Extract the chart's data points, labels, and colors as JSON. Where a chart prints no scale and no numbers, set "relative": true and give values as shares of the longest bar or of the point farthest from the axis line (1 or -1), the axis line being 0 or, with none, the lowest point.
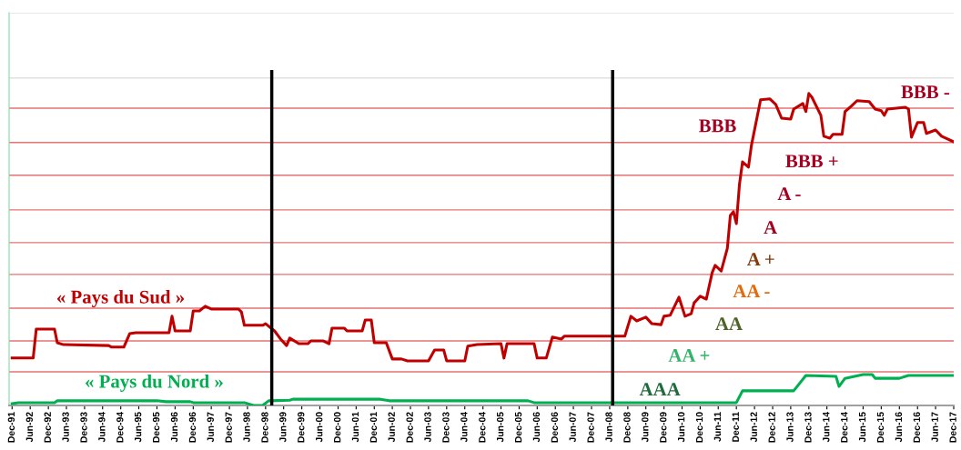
{
  "chart_data": {
    "type": "line",
    "relative": true,
    "grid": false,
    "legend": false,
    "marker": "none",
    "line_style": "solid",
    "xlim": [
      "1991-11",
      "2017-12"
    ],
    "xticks": [
      {
        "value": "1991-12",
        "label": "Dec-91"
      },
      {
        "value": "1992-06",
        "label": "Jun-92"
      },
      {
        "value": "1992-12",
        "label": "Dec-92"
      },
      {
        "value": "1993-06",
        "label": "Jun-93"
      },
      {
        "value": "1993-12",
        "label": "Dec-93"
      },
      {
        "value": "1994-06",
        "label": "Jun-94"
      },
      {
        "value": "1994-12",
        "label": "Dec-94"
      },
      {
        "value": "1995-06",
        "label": "Jun-95"
      },
      {
        "value": "1995-12",
        "label": "Dec-95"
      },
      {
        "value": "1996-06",
        "label": "Jun-96"
      },
      {
        "value": "1996-12",
        "label": "Dec-96"
      },
      {
        "value": "1997-06",
        "label": "Jun-97"
      },
      {
        "value": "1997-12",
        "label": "Dec-97"
      },
      {
        "value": "1998-06",
        "label": "Jun-98"
      },
      {
        "value": "1998-12",
        "label": "Dec-98"
      },
      {
        "value": "1999-06",
        "label": "Jun-99"
      },
      {
        "value": "1999-12",
        "label": "Dec-99"
      },
      {
        "value": "2000-06",
        "label": "Jun-00"
      },
      {
        "value": "2000-12",
        "label": "Dec-00"
      },
      {
        "value": "2001-06",
        "label": "Jun-01"
      },
      {
        "value": "2001-12",
        "label": "Dec-01"
      },
      {
        "value": "2002-06",
        "label": "Jun-02"
      },
      {
        "value": "2002-12",
        "label": "Dec-02"
      },
      {
        "value": "2003-06",
        "label": "Jun-03"
      },
      {
        "value": "2003-12",
        "label": "Dec-03"
      },
      {
        "value": "2004-06",
        "label": "Jun-04"
      },
      {
        "value": "2004-12",
        "label": "Dec-04"
      },
      {
        "value": "2005-06",
        "label": "Jun-05"
      },
      {
        "value": "2005-12",
        "label": "Dec-05"
      },
      {
        "value": "2006-06",
        "label": "Jun-06"
      },
      {
        "value": "2006-12",
        "label": "Dec-06"
      },
      {
        "value": "2007-06",
        "label": "Jun-07"
      },
      {
        "value": "2007-12",
        "label": "Dec-07"
      },
      {
        "value": "2008-06",
        "label": "Jun-08"
      },
      {
        "value": "2008-12",
        "label": "Dec-08"
      },
      {
        "value": "2009-06",
        "label": "Jun-09"
      },
      {
        "value": "2009-12",
        "label": "Dec-09"
      },
      {
        "value": "2010-06",
        "label": "Jun-10"
      },
      {
        "value": "2010-12",
        "label": "Dec-10"
      },
      {
        "value": "2011-06",
        "label": "Jun-11"
      },
      {
        "value": "2011-12",
        "label": "Dec-11"
      },
      {
        "value": "2012-06",
        "label": "Jun-12"
      },
      {
        "value": "2012-12",
        "label": "Dec-12"
      },
      {
        "value": "2013-06",
        "label": "Jun-13"
      },
      {
        "value": "2013-12",
        "label": "Dec-13"
      },
      {
        "value": "2014-06",
        "label": "Jun-14"
      },
      {
        "value": "2014-12",
        "label": "Dec-14"
      },
      {
        "value": "2015-06",
        "label": "Jun-15"
      },
      {
        "value": "2015-12",
        "label": "Dec-15"
      },
      {
        "value": "2016-06",
        "label": "Jun-16"
      },
      {
        "value": "2016-12",
        "label": "Dec-16"
      },
      {
        "value": "2017-06",
        "label": "Jun-17"
      },
      {
        "value": "2017-12",
        "label": "Dec-17"
      }
    ],
    "series": [
      {
        "name": "« Pays du Sud »",
        "color": "#c00000",
        "x": [
          "1991-12",
          "1992-07",
          "1992-08",
          "1993-02",
          "1993-03",
          "1993-05",
          "1994-08",
          "1994-09",
          "1995-01",
          "1995-03",
          "1995-05",
          "1996-04",
          "1996-05",
          "1996-06",
          "1996-11",
          "1996-12",
          "1997-02",
          "1997-04",
          "1997-06",
          "1998-03",
          "1998-04",
          "1998-05",
          "1998-11",
          "1998-12",
          "1999-03",
          "1999-05",
          "1999-07",
          "1999-08",
          "1999-11",
          "2000-02",
          "2000-03",
          "2000-07",
          "2000-09",
          "2000-10",
          "2001-02",
          "2001-03",
          "2001-08",
          "2001-09",
          "2001-11",
          "2001-12",
          "2002-04",
          "2002-06",
          "2002-09",
          "2002-11",
          "2003-06",
          "2003-08",
          "2003-11",
          "2003-12",
          "2004-06",
          "2004-07",
          "2004-10",
          "2005-06",
          "2005-07",
          "2005-08",
          "2006-05",
          "2006-06",
          "2006-09",
          "2006-11",
          "2007-02",
          "2007-03",
          "2008-11",
          "2009-01",
          "2009-03",
          "2009-06",
          "2009-08",
          "2009-11",
          "2009-12",
          "2010-02",
          "2010-05",
          "2010-07",
          "2010-09",
          "2010-10",
          "2010-12",
          "2011-02",
          "2011-04",
          "2011-05",
          "2011-07",
          "2011-09",
          "2011-10",
          "2011-11",
          "2011-12",
          "2012-01",
          "2012-02",
          "2012-04",
          "2012-05",
          "2012-08",
          "2012-11",
          "2013-01",
          "2013-03",
          "2013-06",
          "2013-07",
          "2013-10",
          "2013-11",
          "2013-12",
          "2014-01",
          "2014-04",
          "2014-05",
          "2014-07",
          "2014-08",
          "2014-11",
          "2014-12",
          "2015-02",
          "2015-04",
          "2015-08",
          "2015-10",
          "2015-12",
          "2016-01",
          "2016-02",
          "2016-08",
          "2016-09",
          "2016-10",
          "2016-12",
          "2017-02",
          "2017-03",
          "2017-06",
          "2017-08",
          "2017-12"
        ],
        "values": [
          0.152,
          0.152,
          0.245,
          0.245,
          0.201,
          0.195,
          0.192,
          0.187,
          0.187,
          0.23,
          0.233,
          0.233,
          0.286,
          0.239,
          0.239,
          0.303,
          0.303,
          0.318,
          0.309,
          0.309,
          0.3,
          0.257,
          0.257,
          0.262,
          0.239,
          0.213,
          0.192,
          0.216,
          0.198,
          0.198,
          0.207,
          0.207,
          0.198,
          0.248,
          0.248,
          0.239,
          0.239,
          0.274,
          0.274,
          0.201,
          0.201,
          0.149,
          0.149,
          0.143,
          0.143,
          0.178,
          0.178,
          0.143,
          0.143,
          0.19,
          0.195,
          0.198,
          0.152,
          0.198,
          0.198,
          0.152,
          0.152,
          0.219,
          0.213,
          0.222,
          0.222,
          0.286,
          0.271,
          0.283,
          0.262,
          0.259,
          0.286,
          0.289,
          0.347,
          0.286,
          0.294,
          0.329,
          0.35,
          0.341,
          0.426,
          0.449,
          0.431,
          0.504,
          0.609,
          0.621,
          0.583,
          0.708,
          0.781,
          0.764,
          0.834,
          0.98,
          0.983,
          0.965,
          0.921,
          0.918,
          0.95,
          0.968,
          0.942,
          1.0,
          0.988,
          0.93,
          0.863,
          0.857,
          0.869,
          0.869,
          0.942,
          0.959,
          0.977,
          0.974,
          0.95,
          0.945,
          0.93,
          0.95,
          0.956,
          0.95,
          0.86,
          0.907,
          0.907,
          0.872,
          0.883,
          0.863,
          0.845
        ]
      },
      {
        "name": "« Pays du Nord »",
        "color": "#00b050",
        "x": [
          "1991-12",
          "1992-02",
          "1993-02",
          "1993-03",
          "1995-12",
          "1996-03",
          "1996-11",
          "1996-12",
          "1998-05",
          "1998-08",
          "1998-11",
          "1999-01",
          "1999-08",
          "1999-09",
          "2002-02",
          "2002-05",
          "2006-03",
          "2006-05",
          "2011-12",
          "2012-02",
          "2013-07",
          "2013-11",
          "2014-09",
          "2014-10",
          "2014-12",
          "2015-06",
          "2015-09",
          "2015-10",
          "2016-06",
          "2016-09",
          "2017-12"
        ],
        "values": [
          0.006,
          0.009,
          0.009,
          0.015,
          0.015,
          0.012,
          0.012,
          0.009,
          0.009,
          0,
          0,
          0.015,
          0.017,
          0.02,
          0.02,
          0.015,
          0.015,
          0.009,
          0.009,
          0.047,
          0.047,
          0.096,
          0.093,
          0.061,
          0.087,
          0.099,
          0.099,
          0.087,
          0.087,
          0.096,
          0.096
        ]
      }
    ],
    "ref_lines": [
      {
        "axis": "x",
        "value": "1999-02",
        "color": "#000000"
      },
      {
        "axis": "x",
        "value": "2008-07",
        "color": "#000000"
      },
      {
        "axis": "y",
        "value": 0.108,
        "color": "#e57373"
      },
      {
        "axis": "y",
        "value": 0.207,
        "color": "#e57373"
      },
      {
        "axis": "y",
        "value": 0.312,
        "color": "#e57373"
      },
      {
        "axis": "y",
        "value": 0.42,
        "color": "#e57373"
      },
      {
        "axis": "y",
        "value": 0.522,
        "color": "#e57373"
      },
      {
        "axis": "y",
        "value": 0.627,
        "color": "#e57373"
      },
      {
        "axis": "y",
        "value": 0.738,
        "color": "#e57373"
      },
      {
        "axis": "y",
        "value": 0.843,
        "color": "#e57373"
      },
      {
        "axis": "y",
        "value": 0.953,
        "color": "#e57373"
      },
      {
        "axis": "y",
        "value": 1.05,
        "color": "#e0e0e0"
      },
      {
        "axis": "y",
        "value": 1.259,
        "color": "#e0e0e0"
      }
    ],
    "annotations": [
      "AAA",
      "AA +",
      "AA",
      "AA -",
      "A +",
      "A",
      "A -",
      "BBB +",
      "BBB",
      "BBB -"
    ]
  }
}
